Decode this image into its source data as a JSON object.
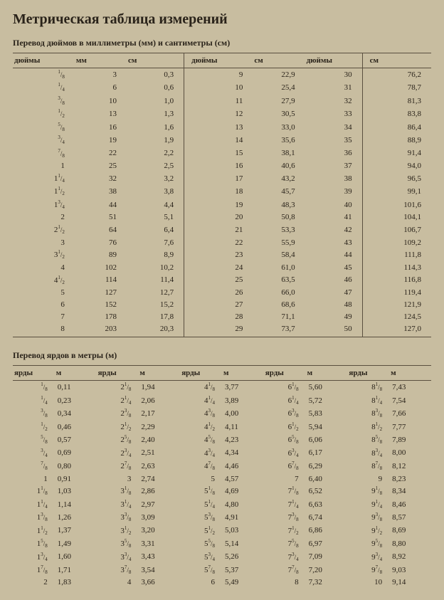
{
  "title": "Метрическая таблица измерений",
  "inches": {
    "subtitle": "Перевод дюймов в миллиметры (мм) и сантиметры (см)",
    "headers": [
      "дюймы",
      "мм",
      "см",
      "дюймы",
      "см",
      "дюймы",
      "см"
    ],
    "rows": [
      [
        {
          "w": "",
          "n": "1",
          "d": "8"
        },
        "3",
        "0,3",
        "9",
        "22,9",
        "30",
        "76,2"
      ],
      [
        {
          "w": "",
          "n": "1",
          "d": "4"
        },
        "6",
        "0,6",
        "10",
        "25,4",
        "31",
        "78,7"
      ],
      [
        {
          "w": "",
          "n": "3",
          "d": "8"
        },
        "10",
        "1,0",
        "11",
        "27,9",
        "32",
        "81,3"
      ],
      [
        {
          "w": "",
          "n": "1",
          "d": "2"
        },
        "13",
        "1,3",
        "12",
        "30,5",
        "33",
        "83,8"
      ],
      [
        {
          "w": "",
          "n": "5",
          "d": "8"
        },
        "16",
        "1,6",
        "13",
        "33,0",
        "34",
        "86,4"
      ],
      [
        {
          "w": "",
          "n": "3",
          "d": "4"
        },
        "19",
        "1,9",
        "14",
        "35,6",
        "35",
        "88,9"
      ],
      [
        {
          "w": "",
          "n": "7",
          "d": "8"
        },
        "22",
        "2,2",
        "15",
        "38,1",
        "36",
        "91,4"
      ],
      [
        {
          "w": "1"
        },
        "25",
        "2,5",
        "16",
        "40,6",
        "37",
        "94,0"
      ],
      [
        {
          "w": "1",
          "n": "1",
          "d": "4"
        },
        "32",
        "3,2",
        "17",
        "43,2",
        "38",
        "96,5"
      ],
      [
        {
          "w": "1",
          "n": "1",
          "d": "2"
        },
        "38",
        "3,8",
        "18",
        "45,7",
        "39",
        "99,1"
      ],
      [
        {
          "w": "1",
          "n": "3",
          "d": "4"
        },
        "44",
        "4,4",
        "19",
        "48,3",
        "40",
        "101,6"
      ],
      [
        {
          "w": "2"
        },
        "51",
        "5,1",
        "20",
        "50,8",
        "41",
        "104,1"
      ],
      [
        {
          "w": "2",
          "n": "1",
          "d": "2"
        },
        "64",
        "6,4",
        "21",
        "53,3",
        "42",
        "106,7"
      ],
      [
        {
          "w": "3"
        },
        "76",
        "7,6",
        "22",
        "55,9",
        "43",
        "109,2"
      ],
      [
        {
          "w": "3",
          "n": "1",
          "d": "2"
        },
        "89",
        "8,9",
        "23",
        "58,4",
        "44",
        "111,8"
      ],
      [
        {
          "w": "4"
        },
        "102",
        "10,2",
        "24",
        "61,0",
        "45",
        "114,3"
      ],
      [
        {
          "w": "4",
          "n": "1",
          "d": "2"
        },
        "114",
        "11,4",
        "25",
        "63,5",
        "46",
        "116,8"
      ],
      [
        {
          "w": "5"
        },
        "127",
        "12,7",
        "26",
        "66,0",
        "47",
        "119,4"
      ],
      [
        {
          "w": "6"
        },
        "152",
        "15,2",
        "27",
        "68,6",
        "48",
        "121,9"
      ],
      [
        {
          "w": "7"
        },
        "178",
        "17,8",
        "28",
        "71,1",
        "49",
        "124,5"
      ],
      [
        {
          "w": "8"
        },
        "203",
        "20,3",
        "29",
        "73,7",
        "50",
        "127,0"
      ]
    ]
  },
  "yards": {
    "subtitle": "Перевод ярдов в метры (м)",
    "headers": [
      "ярды",
      "м",
      "ярды",
      "м",
      "ярды",
      "м",
      "ярды",
      "м",
      "ярды",
      "м"
    ],
    "rows": [
      [
        {
          "w": "",
          "n": "1",
          "d": "8"
        },
        "0,11",
        {
          "w": "2",
          "n": "1",
          "d": "8"
        },
        "1,94",
        {
          "w": "4",
          "n": "1",
          "d": "8"
        },
        "3,77",
        {
          "w": "6",
          "n": "1",
          "d": "8"
        },
        "5,60",
        {
          "w": "8",
          "n": "1",
          "d": "8"
        },
        "7,43"
      ],
      [
        {
          "w": "",
          "n": "1",
          "d": "4"
        },
        "0,23",
        {
          "w": "2",
          "n": "1",
          "d": "4"
        },
        "2,06",
        {
          "w": "4",
          "n": "1",
          "d": "4"
        },
        "3,89",
        {
          "w": "6",
          "n": "1",
          "d": "4"
        },
        "5,72",
        {
          "w": "8",
          "n": "1",
          "d": "4"
        },
        "7,54"
      ],
      [
        {
          "w": "",
          "n": "3",
          "d": "8"
        },
        "0,34",
        {
          "w": "2",
          "n": "3",
          "d": "8"
        },
        "2,17",
        {
          "w": "4",
          "n": "3",
          "d": "8"
        },
        "4,00",
        {
          "w": "6",
          "n": "3",
          "d": "8"
        },
        "5,83",
        {
          "w": "8",
          "n": "3",
          "d": "8"
        },
        "7,66"
      ],
      [
        {
          "w": "",
          "n": "1",
          "d": "2"
        },
        "0,46",
        {
          "w": "2",
          "n": "1",
          "d": "2"
        },
        "2,29",
        {
          "w": "4",
          "n": "1",
          "d": "2"
        },
        "4,11",
        {
          "w": "6",
          "n": "1",
          "d": "2"
        },
        "5,94",
        {
          "w": "8",
          "n": "1",
          "d": "2"
        },
        "7,77"
      ],
      [
        {
          "w": "",
          "n": "5",
          "d": "8"
        },
        "0,57",
        {
          "w": "2",
          "n": "5",
          "d": "8"
        },
        "2,40",
        {
          "w": "4",
          "n": "5",
          "d": "8"
        },
        "4,23",
        {
          "w": "6",
          "n": "5",
          "d": "8"
        },
        "6,06",
        {
          "w": "8",
          "n": "5",
          "d": "8"
        },
        "7,89"
      ],
      [
        {
          "w": "",
          "n": "3",
          "d": "4"
        },
        "0,69",
        {
          "w": "2",
          "n": "3",
          "d": "4"
        },
        "2,51",
        {
          "w": "4",
          "n": "3",
          "d": "4"
        },
        "4,34",
        {
          "w": "6",
          "n": "3",
          "d": "4"
        },
        "6,17",
        {
          "w": "8",
          "n": "3",
          "d": "4"
        },
        "8,00"
      ],
      [
        {
          "w": "",
          "n": "7",
          "d": "8"
        },
        "0,80",
        {
          "w": "2",
          "n": "7",
          "d": "8"
        },
        "2,63",
        {
          "w": "4",
          "n": "7",
          "d": "8"
        },
        "4,46",
        {
          "w": "6",
          "n": "7",
          "d": "8"
        },
        "6,29",
        {
          "w": "8",
          "n": "7",
          "d": "8"
        },
        "8,12"
      ],
      [
        {
          "w": "1"
        },
        "0,91",
        {
          "w": "3"
        },
        "2,74",
        {
          "w": "5"
        },
        "4,57",
        {
          "w": "7"
        },
        "6,40",
        {
          "w": "9"
        },
        "8,23"
      ],
      [
        {
          "w": "1",
          "n": "1",
          "d": "8"
        },
        "1,03",
        {
          "w": "3",
          "n": "1",
          "d": "8"
        },
        "2,86",
        {
          "w": "5",
          "n": "1",
          "d": "8"
        },
        "4,69",
        {
          "w": "7",
          "n": "1",
          "d": "8"
        },
        "6,52",
        {
          "w": "9",
          "n": "1",
          "d": "8"
        },
        "8,34"
      ],
      [
        {
          "w": "1",
          "n": "1",
          "d": "4"
        },
        "1,14",
        {
          "w": "3",
          "n": "1",
          "d": "4"
        },
        "2,97",
        {
          "w": "5",
          "n": "1",
          "d": "4"
        },
        "4,80",
        {
          "w": "7",
          "n": "1",
          "d": "4"
        },
        "6,63",
        {
          "w": "9",
          "n": "1",
          "d": "4"
        },
        "8,46"
      ],
      [
        {
          "w": "1",
          "n": "3",
          "d": "8"
        },
        "1,26",
        {
          "w": "3",
          "n": "3",
          "d": "8"
        },
        "3,09",
        {
          "w": "5",
          "n": "3",
          "d": "8"
        },
        "4,91",
        {
          "w": "7",
          "n": "3",
          "d": "8"
        },
        "6,74",
        {
          "w": "9",
          "n": "3",
          "d": "8"
        },
        "8,57"
      ],
      [
        {
          "w": "1",
          "n": "1",
          "d": "2"
        },
        "1,37",
        {
          "w": "3",
          "n": "1",
          "d": "2"
        },
        "3,20",
        {
          "w": "5",
          "n": "1",
          "d": "2"
        },
        "5,03",
        {
          "w": "7",
          "n": "1",
          "d": "2"
        },
        "6,86",
        {
          "w": "9",
          "n": "1",
          "d": "2"
        },
        "8,69"
      ],
      [
        {
          "w": "1",
          "n": "5",
          "d": "8"
        },
        "1,49",
        {
          "w": "3",
          "n": "5",
          "d": "8"
        },
        "3,31",
        {
          "w": "5",
          "n": "5",
          "d": "8"
        },
        "5,14",
        {
          "w": "7",
          "n": "5",
          "d": "8"
        },
        "6,97",
        {
          "w": "9",
          "n": "5",
          "d": "8"
        },
        "8,80"
      ],
      [
        {
          "w": "1",
          "n": "3",
          "d": "4"
        },
        "1,60",
        {
          "w": "3",
          "n": "3",
          "d": "4"
        },
        "3,43",
        {
          "w": "5",
          "n": "3",
          "d": "4"
        },
        "5,26",
        {
          "w": "7",
          "n": "3",
          "d": "4"
        },
        "7,09",
        {
          "w": "9",
          "n": "3",
          "d": "4"
        },
        "8,92"
      ],
      [
        {
          "w": "1",
          "n": "7",
          "d": "8"
        },
        "1,71",
        {
          "w": "3",
          "n": "7",
          "d": "8"
        },
        "3,54",
        {
          "w": "5",
          "n": "7",
          "d": "8"
        },
        "5,37",
        {
          "w": "7",
          "n": "7",
          "d": "8"
        },
        "7,20",
        {
          "w": "9",
          "n": "7",
          "d": "8"
        },
        "9,03"
      ],
      [
        {
          "w": "2"
        },
        "1,83",
        {
          "w": "4"
        },
        "3,66",
        {
          "w": "6"
        },
        "5,49",
        {
          "w": "8"
        },
        "7,32",
        {
          "w": "10"
        },
        "9,14"
      ]
    ]
  },
  "style": {
    "background": "#c8bda0",
    "text_color": "#2a231a",
    "rule_color": "#5a4f3f",
    "title_fontsize": 20,
    "subtitle_fontsize": 12,
    "body_fontsize": 11
  }
}
